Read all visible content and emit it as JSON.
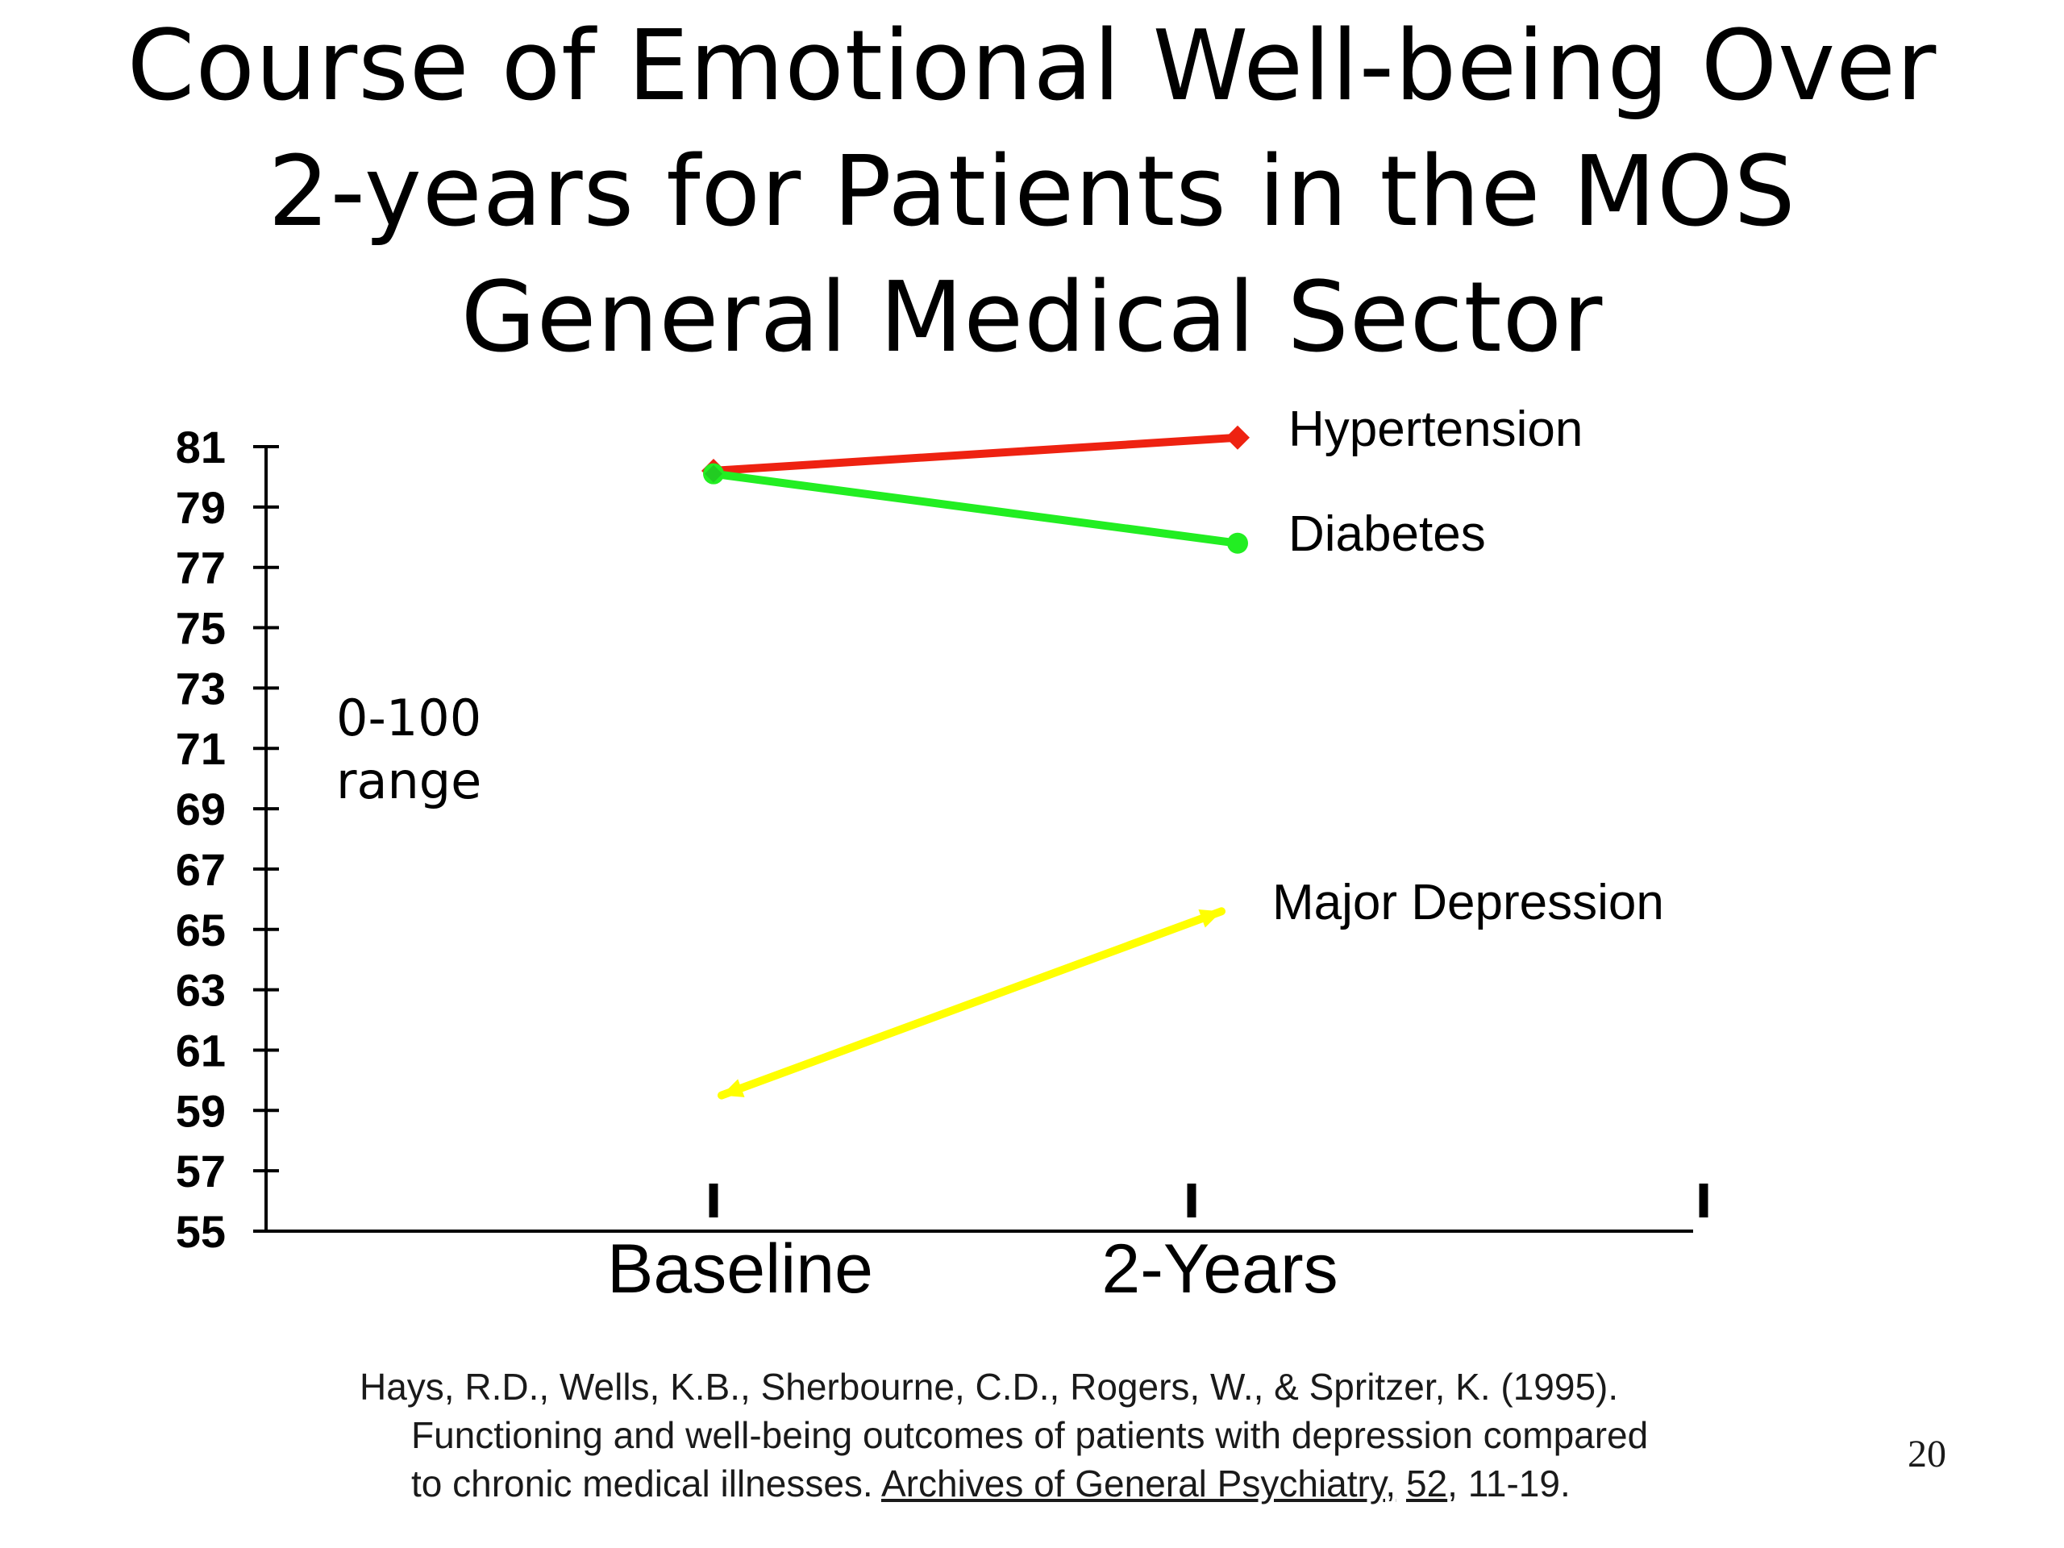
{
  "slide": {
    "title_lines": [
      "Course of Emotional Well-being Over",
      "2-years for Patients in the MOS",
      "General Medical Sector"
    ],
    "range_note": [
      "0-100",
      "range"
    ],
    "citation": {
      "line1": "Hays, R.D., Wells, K.B., Sherbourne, C.D., Rogers, W., & Spritzer, K. (1995).",
      "line2": "Functioning and well-being outcomes of patients with depression compared",
      "line3_pre": "to chronic medical illnesses.  ",
      "journal": "Archives of General Psychiatry,",
      "line3_sep": " ",
      "volume": "52",
      "line3_post": ", 11-19."
    },
    "page_number": "20"
  },
  "chart_data": {
    "type": "line",
    "title": "Course of Emotional Well-being Over 2-years for Patients in the MOS General Medical Sector",
    "categories": [
      "Baseline",
      "2-Years"
    ],
    "ylim": [
      55,
      81
    ],
    "yticks": [
      55,
      57,
      59,
      61,
      63,
      65,
      67,
      69,
      71,
      73,
      75,
      77,
      79,
      81
    ],
    "grid": false,
    "legend": "direct labels at line ends",
    "series": [
      {
        "name": "Hypertension",
        "values": [
          80.2,
          81.3
        ],
        "color": "#ee2211",
        "marker": "diamond"
      },
      {
        "name": "Diabetes",
        "values": [
          80.1,
          77.8
        ],
        "color": "#22ee22",
        "marker": "circle"
      },
      {
        "name": "Major Depression",
        "values": [
          59.5,
          65.6
        ],
        "color": "#ffff00",
        "marker": "arrow"
      }
    ]
  }
}
